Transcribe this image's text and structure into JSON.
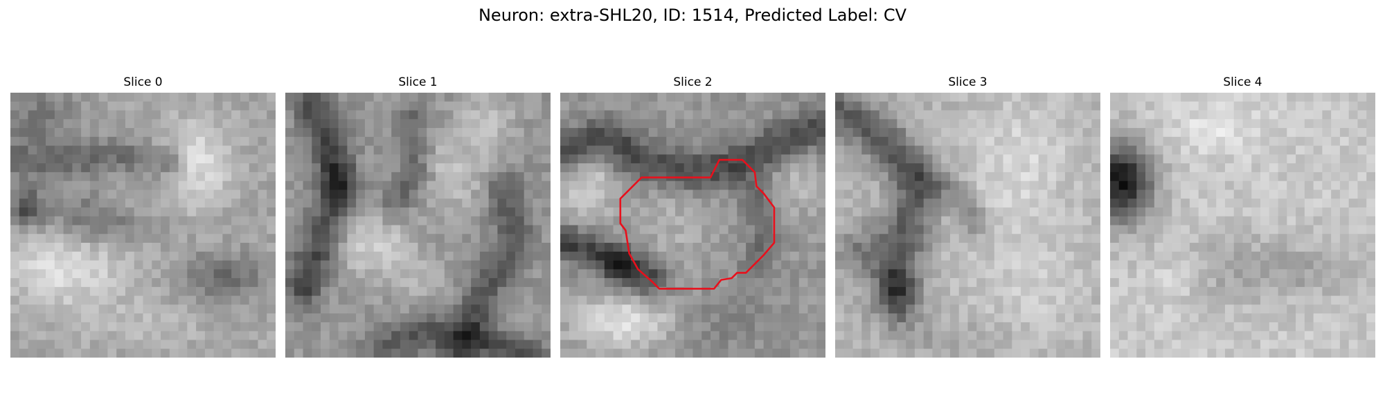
{
  "figure": {
    "suptitle": "Neuron: extra-SHL20, ID: 1514, Predicted Label: CV",
    "grid_resolution": 30,
    "contour_color": "#e8101c",
    "slices": [
      {
        "label": "Slice 0",
        "has_contour": false
      },
      {
        "label": "Slice 1",
        "has_contour": false
      },
      {
        "label": "Slice 2",
        "has_contour": true
      },
      {
        "label": "Slice 3",
        "has_contour": false
      },
      {
        "label": "Slice 4",
        "has_contour": false
      }
    ]
  }
}
